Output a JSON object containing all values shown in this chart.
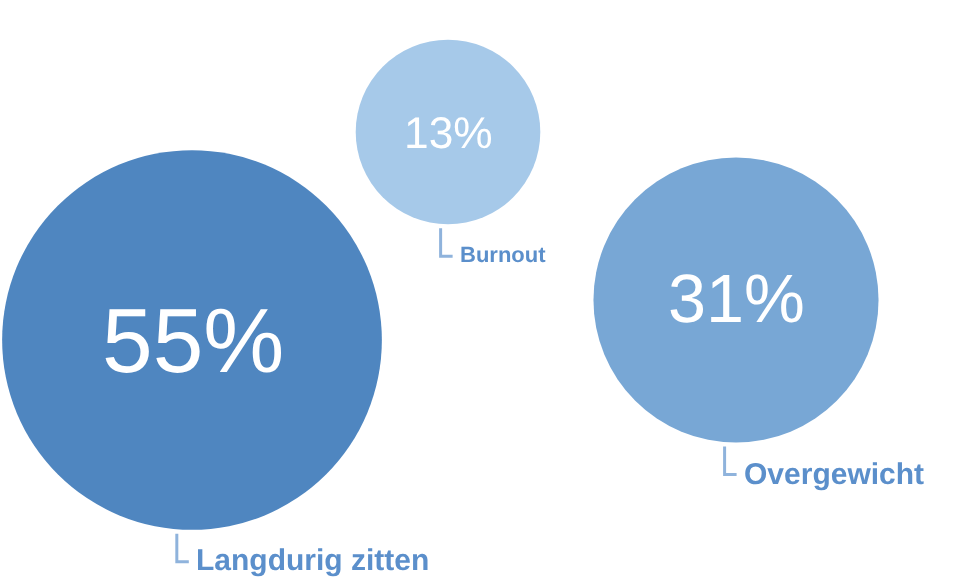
{
  "chart_data": {
    "type": "other",
    "categories": [
      "Langdurig zitten",
      "Burnout",
      "Overgewicht"
    ],
    "values": [
      55,
      13,
      31
    ],
    "value_labels": [
      "55%",
      "13%",
      "31%"
    ],
    "colors": [
      "#4f86c0",
      "#a6c9e9",
      "#78a7d5"
    ]
  }
}
